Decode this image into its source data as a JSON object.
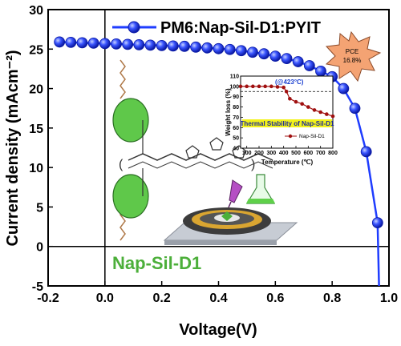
{
  "chart_data": {
    "type": "line",
    "title": "",
    "xlabel": "Voltage(V)",
    "ylabel": "Current density (mAcm⁻²)",
    "xlim": [
      -0.2,
      1.0
    ],
    "ylim": [
      -5,
      30
    ],
    "x_ticks": [
      -0.2,
      0.0,
      0.2,
      0.4,
      0.6,
      0.8,
      1.0
    ],
    "y_ticks": [
      -5,
      0,
      5,
      10,
      15,
      20,
      25,
      30
    ],
    "x_tick_labels": [
      "-0.2",
      "0.0",
      "0.2",
      "0.4",
      "0.6",
      "0.8",
      "1.0"
    ],
    "y_tick_labels": [
      "-5",
      "0",
      "5",
      "10",
      "15",
      "20",
      "25",
      "30"
    ],
    "grid": false,
    "legend_position": "top",
    "series": [
      {
        "name": "PM6:Nap-Sil-D1:PYIT",
        "color": "#1f3dff",
        "x": [
          -0.16,
          -0.12,
          -0.08,
          -0.04,
          0.0,
          0.04,
          0.08,
          0.12,
          0.16,
          0.2,
          0.24,
          0.28,
          0.32,
          0.36,
          0.4,
          0.44,
          0.48,
          0.52,
          0.56,
          0.6,
          0.64,
          0.68,
          0.72,
          0.76,
          0.8,
          0.84,
          0.88,
          0.92,
          0.96
        ],
        "y": [
          25.9,
          25.85,
          25.8,
          25.75,
          25.7,
          25.65,
          25.6,
          25.55,
          25.5,
          25.45,
          25.4,
          25.35,
          25.25,
          25.15,
          25.05,
          24.95,
          24.8,
          24.6,
          24.4,
          24.1,
          23.8,
          23.4,
          22.9,
          22.2,
          21.5,
          20.0,
          17.5,
          12.0,
          3.0
        ]
      }
    ],
    "annotations": {
      "pce_line1": "PCE",
      "pce_line2": "16.8%",
      "molecule_label": "Nap-Sil-D1"
    },
    "inset": {
      "type": "line",
      "xlabel": "Temperature (℃)",
      "ylabel": "Weight loss (%)",
      "xlim": [
        50,
        800
      ],
      "ylim": [
        40,
        110
      ],
      "x_tick_labels": [
        "100",
        "200",
        "300",
        "400",
        "500",
        "600",
        "700",
        "800"
      ],
      "y_tick_labels": [
        "40",
        "50",
        "60",
        "70",
        "80",
        "90",
        "100",
        "110"
      ],
      "annotation": "(@423°C)",
      "banner": "Thermal Stability of Nap-Sil-D1",
      "reference_line_y": 95,
      "series": [
        {
          "name": "Nap-Sil-D1",
          "color": "#a01010",
          "x": [
            50,
            100,
            150,
            200,
            250,
            300,
            350,
            400,
            423,
            450,
            500,
            550,
            600,
            650,
            700,
            750,
            800
          ],
          "y": [
            100,
            100,
            100,
            100,
            100,
            100,
            99.5,
            99,
            95,
            88,
            85,
            83,
            80,
            77,
            75,
            73,
            71
          ]
        }
      ]
    }
  }
}
